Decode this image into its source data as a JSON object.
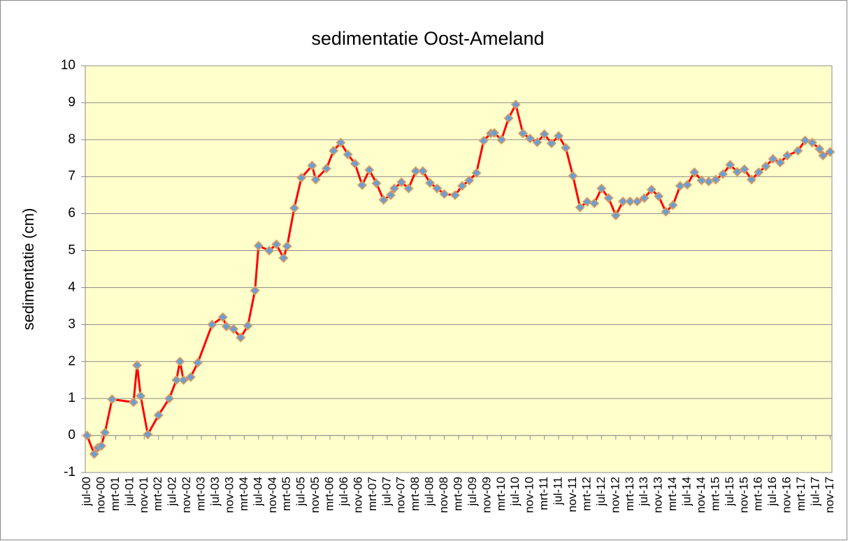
{
  "chart_data": {
    "type": "line",
    "title": "sedimentatie Oost-Ameland",
    "y_label": "sedimentatie (cm)",
    "x": [
      "2000-07",
      "2000-09",
      "2000-10",
      "2000-11",
      "2000-12",
      "2001-02",
      "2001-08",
      "2001-09",
      "2001-10",
      "2001-12",
      "2002-03",
      "2002-06",
      "2002-08",
      "2002-09",
      "2002-10",
      "2002-12",
      "2003-02",
      "2003-06",
      "2003-09",
      "2003-10",
      "2003-12",
      "2004-02",
      "2004-04",
      "2004-06",
      "2004-07",
      "2004-10",
      "2004-12",
      "2005-02",
      "2005-03",
      "2005-05",
      "2005-07",
      "2005-10",
      "2005-11",
      "2006-02",
      "2006-04",
      "2006-06",
      "2006-08",
      "2006-10",
      "2006-12",
      "2007-02",
      "2007-04",
      "2007-06",
      "2007-08",
      "2007-09",
      "2007-11",
      "2008-01",
      "2008-03",
      "2008-05",
      "2008-07",
      "2008-09",
      "2008-11",
      "2009-02",
      "2009-04",
      "2009-06",
      "2009-08",
      "2009-10",
      "2009-12",
      "2010-01",
      "2010-03",
      "2010-05",
      "2010-07",
      "2010-09",
      "2010-11",
      "2011-01",
      "2011-03",
      "2011-05",
      "2011-07",
      "2011-09",
      "2011-11",
      "2012-01",
      "2012-03",
      "2012-05",
      "2012-07",
      "2012-09",
      "2012-11",
      "2013-01",
      "2013-03",
      "2013-05",
      "2013-07",
      "2013-09",
      "2013-11",
      "2014-01",
      "2014-03",
      "2014-05",
      "2014-07",
      "2014-09",
      "2014-11",
      "2015-01",
      "2015-03",
      "2015-05",
      "2015-07",
      "2015-09",
      "2015-11",
      "2016-01",
      "2016-03",
      "2016-05",
      "2016-07",
      "2016-09",
      "2016-11",
      "2017-02",
      "2017-04",
      "2017-06",
      "2017-08",
      "2017-09",
      "2017-11"
    ],
    "series": [
      {
        "color": "#ff0000",
        "marker_color": "#6a9fd6",
        "marker_edge": "#e39b57",
        "values": [
          0,
          -0.5,
          -0.33,
          -0.28,
          0.08,
          0.98,
          0.9,
          1.9,
          1.07,
          0.03,
          0.55,
          1.0,
          1.5,
          2.0,
          1.5,
          1.58,
          1.97,
          3.0,
          3.2,
          2.95,
          2.88,
          2.65,
          2.97,
          3.92,
          5.13,
          5.0,
          5.17,
          4.8,
          5.12,
          6.15,
          6.97,
          7.3,
          6.92,
          7.22,
          7.7,
          7.92,
          7.6,
          7.35,
          6.77,
          7.18,
          6.82,
          6.37,
          6.5,
          6.68,
          6.85,
          6.68,
          7.15,
          7.15,
          6.83,
          6.68,
          6.53,
          6.5,
          6.75,
          6.9,
          7.1,
          7.97,
          8.17,
          8.18,
          8.0,
          8.58,
          8.95,
          8.17,
          8.03,
          7.93,
          8.15,
          7.9,
          8.1,
          7.78,
          7.02,
          6.17,
          6.32,
          6.28,
          6.68,
          6.42,
          5.95,
          6.33,
          6.33,
          6.33,
          6.42,
          6.65,
          6.47,
          6.05,
          6.23,
          6.75,
          6.78,
          7.12,
          6.9,
          6.87,
          6.92,
          7.07,
          7.32,
          7.13,
          7.2,
          6.92,
          7.12,
          7.28,
          7.48,
          7.38,
          7.57,
          7.7,
          7.98,
          7.92,
          7.75,
          7.57,
          7.67
        ]
      }
    ],
    "xlim": [
      "2000-07",
      "2017-11"
    ],
    "xticks": [
      {
        "value": "2000-07",
        "label": "jul-00"
      },
      {
        "value": "2000-11",
        "label": "nov-00"
      },
      {
        "value": "2001-03",
        "label": "mrt-01"
      },
      {
        "value": "2001-07",
        "label": "jul-01"
      },
      {
        "value": "2001-11",
        "label": "nov-01"
      },
      {
        "value": "2002-03",
        "label": "mrt-02"
      },
      {
        "value": "2002-07",
        "label": "jul-02"
      },
      {
        "value": "2002-11",
        "label": "nov-02"
      },
      {
        "value": "2003-03",
        "label": "mrt-03"
      },
      {
        "value": "2003-07",
        "label": "jul-03"
      },
      {
        "value": "2003-11",
        "label": "nov-03"
      },
      {
        "value": "2004-03",
        "label": "mrt-04"
      },
      {
        "value": "2004-07",
        "label": "jul-04"
      },
      {
        "value": "2004-11",
        "label": "nov-04"
      },
      {
        "value": "2005-03",
        "label": "mrt-05"
      },
      {
        "value": "2005-07",
        "label": "jul-05"
      },
      {
        "value": "2005-11",
        "label": "nov-05"
      },
      {
        "value": "2006-03",
        "label": "mrt-06"
      },
      {
        "value": "2006-07",
        "label": "jul-06"
      },
      {
        "value": "2006-11",
        "label": "nov-06"
      },
      {
        "value": "2007-03",
        "label": "mrt-07"
      },
      {
        "value": "2007-07",
        "label": "jul-07"
      },
      {
        "value": "2007-11",
        "label": "nov-07"
      },
      {
        "value": "2008-03",
        "label": "mrt-08"
      },
      {
        "value": "2008-07",
        "label": "jul-08"
      },
      {
        "value": "2008-11",
        "label": "nov-08"
      },
      {
        "value": "2009-03",
        "label": "mrt-09"
      },
      {
        "value": "2009-07",
        "label": "jul-09"
      },
      {
        "value": "2009-11",
        "label": "nov-09"
      },
      {
        "value": "2010-03",
        "label": "mrt-10"
      },
      {
        "value": "2010-07",
        "label": "jul-10"
      },
      {
        "value": "2010-11",
        "label": "nov-10"
      },
      {
        "value": "2011-03",
        "label": "mrt-11"
      },
      {
        "value": "2011-07",
        "label": "jul-11"
      },
      {
        "value": "2011-11",
        "label": "nov-11"
      },
      {
        "value": "2012-03",
        "label": "mrt-12"
      },
      {
        "value": "2012-07",
        "label": "jul-12"
      },
      {
        "value": "2012-11",
        "label": "nov-12"
      },
      {
        "value": "2013-03",
        "label": "mrt-13"
      },
      {
        "value": "2013-07",
        "label": "jul-13"
      },
      {
        "value": "2013-11",
        "label": "nov-13"
      },
      {
        "value": "2014-03",
        "label": "mrt-14"
      },
      {
        "value": "2014-07",
        "label": "jul-14"
      },
      {
        "value": "2014-11",
        "label": "nov-14"
      },
      {
        "value": "2015-03",
        "label": "mrt-15"
      },
      {
        "value": "2015-07",
        "label": "jul-15"
      },
      {
        "value": "2015-11",
        "label": "nov-15"
      },
      {
        "value": "2016-03",
        "label": "mrt-16"
      },
      {
        "value": "2016-07",
        "label": "jul-16"
      },
      {
        "value": "2016-11",
        "label": "nov-16"
      },
      {
        "value": "2017-03",
        "label": "mrt-17"
      },
      {
        "value": "2017-07",
        "label": "jul-17"
      },
      {
        "value": "2017-11",
        "label": "nov-17"
      }
    ],
    "ylim": [
      -1,
      10
    ],
    "yticks": [
      -1,
      0,
      1,
      2,
      3,
      4,
      5,
      6,
      7,
      8,
      9,
      10
    ],
    "grid": true,
    "plot_background": "#ffffcc"
  }
}
